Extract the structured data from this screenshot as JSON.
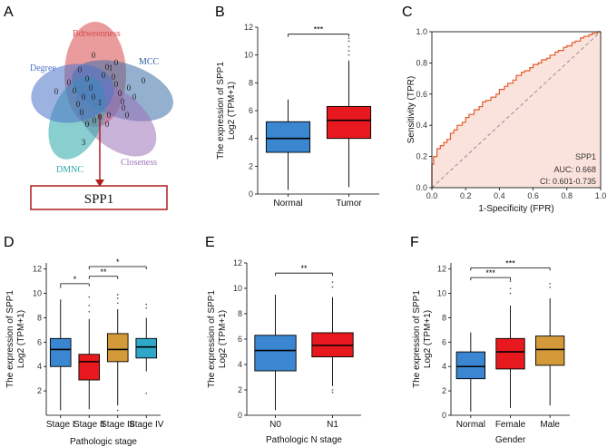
{
  "panels": {
    "A": "A",
    "B": "B",
    "C": "C",
    "D": "D",
    "E": "E",
    "F": "F"
  },
  "venn": {
    "sets": [
      {
        "name": "Bdtweenness",
        "color": "#d84a4a"
      },
      {
        "name": "MCC",
        "color": "#3c6fa8"
      },
      {
        "name": "Closeness",
        "color": "#9a72b8"
      },
      {
        "name": "DMNC",
        "color": "#2aa7a7"
      },
      {
        "name": "Degree",
        "color": "#4a72c8"
      }
    ],
    "region_counts": [
      "0",
      "0",
      "0",
      "0",
      "3",
      "0",
      "0",
      "0",
      "1",
      "0",
      "0",
      "0",
      "0",
      "0",
      "0",
      "0",
      "0",
      "1",
      "0",
      "0",
      "0",
      "0",
      "0",
      "0",
      "0",
      "0",
      "0",
      "0",
      "0",
      "0",
      "0"
    ],
    "result_gene": "SPP1"
  },
  "colors": {
    "normal": "#3a86d0",
    "tumor": "#e8191e",
    "stage": "#d49a3a",
    "teal": "#2fa7c9",
    "roc_line": "#e35b2a",
    "roc_fill": "#fbe3dd"
  },
  "chart_data": [
    {
      "id": "B",
      "type": "box",
      "ylabel_line1": "The expression of SPP1",
      "ylabel_line2": "Log2 (TPM+1)",
      "ylim": [
        0,
        12
      ],
      "yticks": [
        "0",
        "2",
        "4",
        "6",
        "8",
        "10",
        "12"
      ],
      "groups": [
        {
          "name": "Normal",
          "min": 0.3,
          "q1": 3.0,
          "median": 4.0,
          "q3": 5.2,
          "max": 6.8,
          "color": "normal",
          "outliers": []
        },
        {
          "name": "Tumor",
          "min": 0.5,
          "q1": 4.0,
          "median": 5.3,
          "q3": 6.3,
          "max": 9.6,
          "color": "tumor",
          "outliers": [
            10.0,
            10.3,
            10.6,
            11.0,
            11.2
          ]
        }
      ],
      "comparisons": [
        {
          "from": 0,
          "to": 1,
          "label": "***",
          "y": 11.5
        }
      ]
    },
    {
      "id": "C",
      "type": "line",
      "title_label": "SPP1",
      "auc": "AUC: 0.668",
      "ci": "CI: 0.601-0.735",
      "xlabel": "1-Specificity (FPR)",
      "ylabel": "Sensitivity (TPR)",
      "xlim": [
        0,
        1
      ],
      "ylim": [
        0,
        1
      ],
      "ticks": [
        "0.0",
        "0.2",
        "0.4",
        "0.6",
        "0.8",
        "1.0"
      ],
      "x": [
        0,
        0,
        0.01,
        0.03,
        0.05,
        0.07,
        0.09,
        0.11,
        0.13,
        0.15,
        0.18,
        0.2,
        0.22,
        0.25,
        0.28,
        0.3,
        0.32,
        0.35,
        0.38,
        0.4,
        0.43,
        0.45,
        0.48,
        0.5,
        0.53,
        0.55,
        0.58,
        0.6,
        0.63,
        0.65,
        0.68,
        0.7,
        0.73,
        0.75,
        0.78,
        0.8,
        0.83,
        0.85,
        0.88,
        0.9,
        0.93,
        0.95,
        0.98,
        1.0
      ],
      "y": [
        0,
        0.15,
        0.2,
        0.25,
        0.27,
        0.29,
        0.31,
        0.35,
        0.37,
        0.4,
        0.42,
        0.45,
        0.47,
        0.5,
        0.52,
        0.55,
        0.56,
        0.58,
        0.6,
        0.63,
        0.65,
        0.67,
        0.69,
        0.72,
        0.74,
        0.75,
        0.77,
        0.79,
        0.8,
        0.82,
        0.83,
        0.85,
        0.87,
        0.88,
        0.9,
        0.91,
        0.93,
        0.94,
        0.96,
        0.97,
        0.98,
        0.99,
        1.0,
        1.0
      ]
    },
    {
      "id": "D",
      "type": "box",
      "ylabel_line1": "The expression of SPP1",
      "ylabel_line2": "Log2 (TPM+1)",
      "xlabel": "Pathologic stage",
      "ylim": [
        0,
        12.5
      ],
      "yticks": [
        "2",
        "4",
        "6",
        "8",
        "10",
        "12"
      ],
      "groups": [
        {
          "name": "Stage I",
          "min": 0.4,
          "q1": 4.0,
          "median": 5.4,
          "q3": 6.3,
          "max": 9.5,
          "color": "normal",
          "outliers": [
            10.5
          ]
        },
        {
          "name": "Stage II",
          "min": 0.5,
          "q1": 2.9,
          "median": 4.4,
          "q3": 5.0,
          "max": 7.9,
          "color": "tumor",
          "outliers": [
            8.5,
            9.0,
            9.7
          ]
        },
        {
          "name": "Stage III",
          "min": 0.8,
          "q1": 4.4,
          "median": 5.4,
          "q3": 6.7,
          "max": 8.7,
          "color": "stage",
          "outliers": [
            9.2,
            9.6,
            9.9,
            0.4
          ]
        },
        {
          "name": "Stage IV",
          "min": 3.6,
          "q1": 4.7,
          "median": 5.6,
          "q3": 6.3,
          "max": 8.0,
          "color": "teal",
          "outliers": [
            8.8,
            9.1,
            1.8
          ]
        }
      ],
      "comparisons": [
        {
          "from": 0,
          "to": 1,
          "label": "*",
          "y": 10.8
        },
        {
          "from": 1,
          "to": 2,
          "label": "**",
          "y": 11.4
        },
        {
          "from": 1,
          "to": 3,
          "label": "*",
          "y": 12.2
        }
      ]
    },
    {
      "id": "E",
      "type": "box",
      "ylabel_line1": "The expression of SPP1",
      "ylabel_line2": "Log2 (TPM+1)",
      "xlabel": "Pathologic N stage",
      "ylim": [
        0,
        12
      ],
      "yticks": [
        "0",
        "2",
        "4",
        "6",
        "8",
        "10",
        "12"
      ],
      "groups": [
        {
          "name": "N0",
          "min": 0.4,
          "q1": 3.5,
          "median": 5.1,
          "q3": 6.3,
          "max": 9.5,
          "color": "normal",
          "outliers": []
        },
        {
          "name": "N1",
          "min": 2.3,
          "q1": 4.6,
          "median": 5.5,
          "q3": 6.5,
          "max": 9.3,
          "color": "tumor",
          "outliers": [
            10.1,
            10.5,
            1.8,
            2.0
          ]
        }
      ],
      "comparisons": [
        {
          "from": 0,
          "to": 1,
          "label": "**",
          "y": 11.2
        }
      ]
    },
    {
      "id": "F",
      "type": "box",
      "ylabel_line1": "The expression of SPP1",
      "ylabel_line2": "Log2 (TPM+1)",
      "xlabel": "Gender",
      "ylim": [
        0,
        12.5
      ],
      "yticks": [
        "0",
        "2",
        "4",
        "6",
        "8",
        "10",
        "12"
      ],
      "groups": [
        {
          "name": "Normal",
          "min": 0.3,
          "q1": 3.0,
          "median": 4.0,
          "q3": 5.2,
          "max": 6.8,
          "color": "normal",
          "outliers": []
        },
        {
          "name": "Female",
          "min": 0.6,
          "q1": 3.8,
          "median": 5.2,
          "q3": 6.3,
          "max": 9.0,
          "color": "tumor",
          "outliers": [
            10.0,
            10.4,
            11.0
          ]
        },
        {
          "name": "Male",
          "min": 0.8,
          "q1": 4.1,
          "median": 5.4,
          "q3": 6.5,
          "max": 9.6,
          "color": "stage",
          "outliers": [
            10.5,
            10.8
          ]
        }
      ],
      "comparisons": [
        {
          "from": 0,
          "to": 1,
          "label": "***",
          "y": 11.3
        },
        {
          "from": 0,
          "to": 2,
          "label": "***",
          "y": 12.1
        }
      ]
    }
  ]
}
